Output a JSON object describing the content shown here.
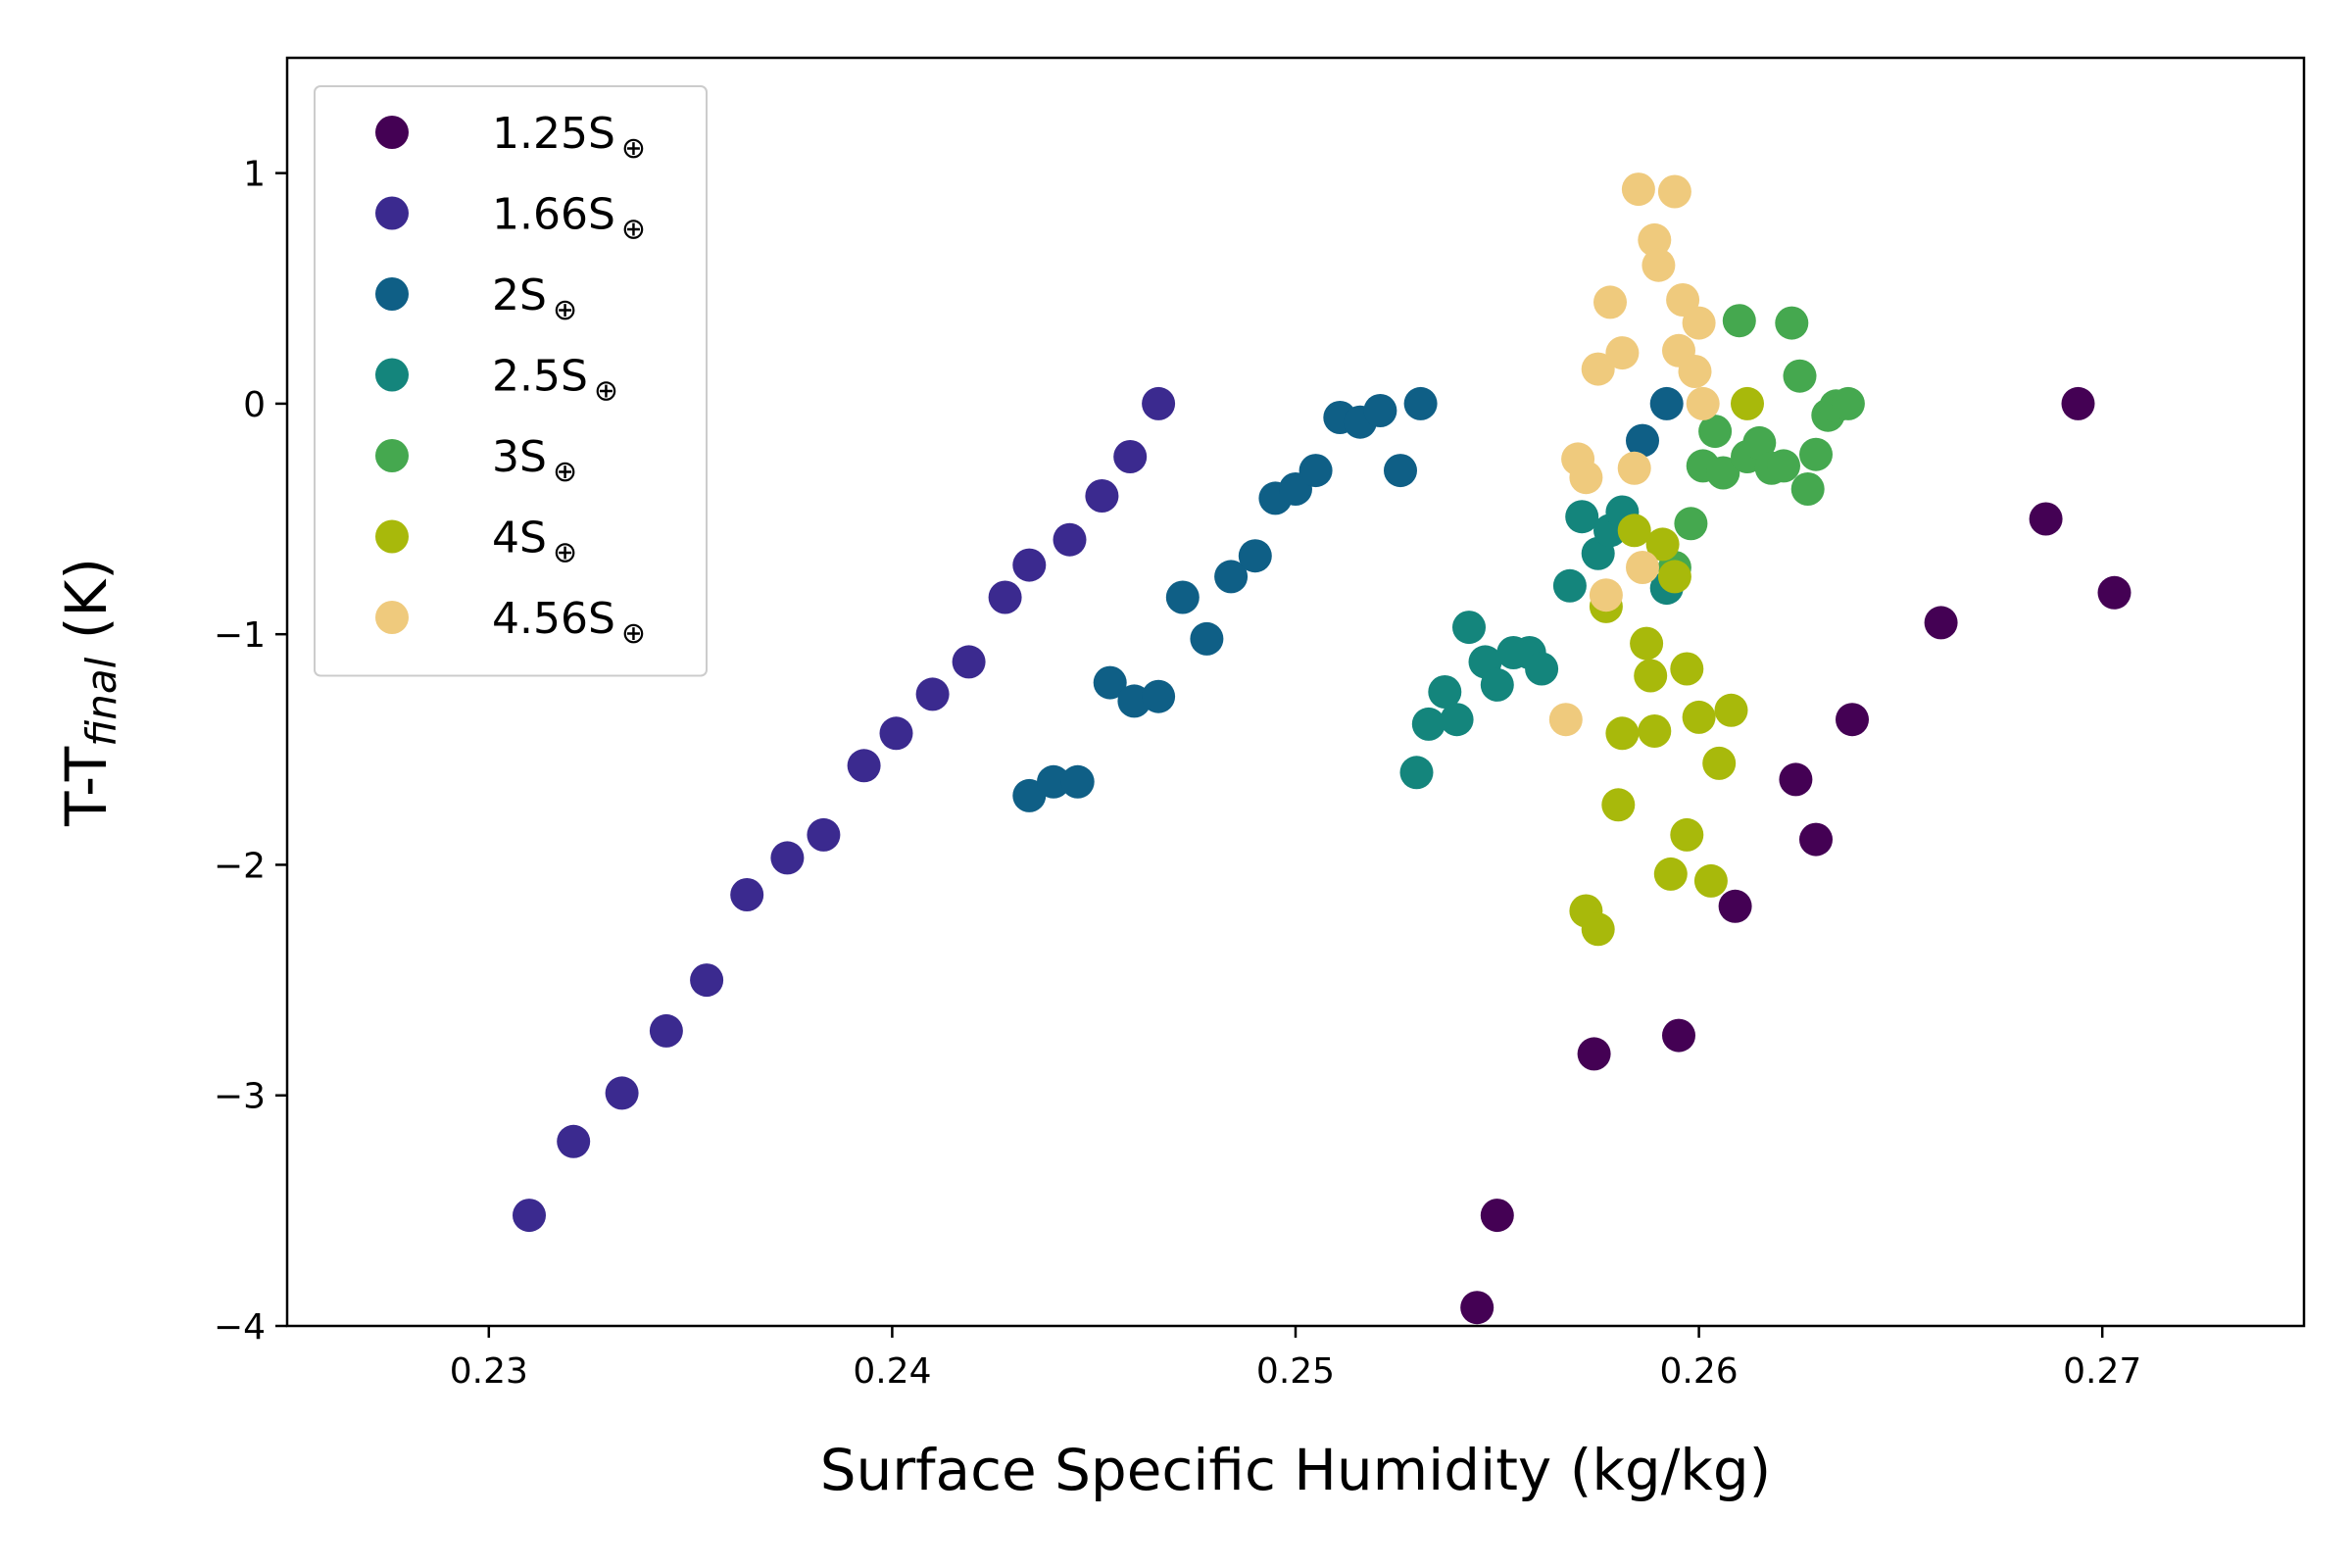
{
  "chart_data": {
    "type": "scatter",
    "title": "",
    "xlabel": "Surface Specific Humidity (kg/kg)",
    "ylabel": {
      "prefix": "T-T",
      "subscript": "final",
      "suffix": " (K)"
    },
    "xlim": [
      0.225,
      0.275
    ],
    "ylim": [
      -4,
      1.5
    ],
    "x_ticks": [
      0.23,
      0.24,
      0.25,
      0.26,
      0.27
    ],
    "x_tick_labels": [
      "0.23",
      "0.24",
      "0.25",
      "0.26",
      "0.27"
    ],
    "y_ticks": [
      1,
      0,
      -1,
      -2,
      -3,
      -4
    ],
    "y_tick_labels": [
      "1",
      "0",
      "−1",
      "−2",
      "−3",
      "−4"
    ],
    "grid": false,
    "legend_position": "top-left",
    "series": [
      {
        "name": "1.25S",
        "subscript": "⊕",
        "color": "#440154",
        "points": [
          [
            0.2545,
            -3.92
          ],
          [
            0.255,
            -3.52
          ],
          [
            0.2574,
            -2.82
          ],
          [
            0.2595,
            -2.74
          ],
          [
            0.2609,
            -2.18
          ],
          [
            0.2624,
            -1.63
          ],
          [
            0.2629,
            -1.89
          ],
          [
            0.2638,
            -1.37
          ],
          [
            0.266,
            -0.95
          ],
          [
            0.2686,
            -0.5
          ],
          [
            0.2694,
            0.0
          ],
          [
            0.2703,
            -0.82
          ]
        ]
      },
      {
        "name": "1.66S",
        "subscript": "⊕",
        "color": "#3b2a8f",
        "points": [
          [
            0.231,
            -3.52
          ],
          [
            0.2321,
            -3.2
          ],
          [
            0.2333,
            -2.99
          ],
          [
            0.2344,
            -2.72
          ],
          [
            0.2354,
            -2.5
          ],
          [
            0.2364,
            -2.13
          ],
          [
            0.2374,
            -1.97
          ],
          [
            0.2383,
            -1.87
          ],
          [
            0.2393,
            -1.57
          ],
          [
            0.2401,
            -1.43
          ],
          [
            0.241,
            -1.26
          ],
          [
            0.2419,
            -1.12
          ],
          [
            0.2428,
            -0.84
          ],
          [
            0.2434,
            -0.7
          ],
          [
            0.2444,
            -0.59
          ],
          [
            0.2452,
            -0.4
          ],
          [
            0.2459,
            -0.23
          ],
          [
            0.2466,
            0.0
          ]
        ]
      },
      {
        "name": "2S",
        "subscript": "⊕",
        "color": "#0f5f86",
        "points": [
          [
            0.2434,
            -1.7
          ],
          [
            0.244,
            -1.64
          ],
          [
            0.2446,
            -1.64
          ],
          [
            0.2454,
            -1.21
          ],
          [
            0.246,
            -1.29
          ],
          [
            0.2466,
            -1.27
          ],
          [
            0.2472,
            -0.84
          ],
          [
            0.2478,
            -1.02
          ],
          [
            0.2484,
            -0.75
          ],
          [
            0.249,
            -0.66
          ],
          [
            0.2495,
            -0.41
          ],
          [
            0.25,
            -0.37
          ],
          [
            0.2505,
            -0.29
          ],
          [
            0.2511,
            -0.06
          ],
          [
            0.2516,
            -0.08
          ],
          [
            0.2521,
            -0.03
          ],
          [
            0.2526,
            -0.29
          ],
          [
            0.2531,
            0.0
          ],
          [
            0.2586,
            -0.16
          ],
          [
            0.2592,
            0.0
          ]
        ]
      },
      {
        "name": "2.5S",
        "subscript": "⊕",
        "color": "#14857c",
        "points": [
          [
            0.253,
            -1.6
          ],
          [
            0.2533,
            -1.39
          ],
          [
            0.2537,
            -1.25
          ],
          [
            0.254,
            -1.37
          ],
          [
            0.2543,
            -0.97
          ],
          [
            0.2547,
            -1.12
          ],
          [
            0.255,
            -1.22
          ],
          [
            0.2554,
            -1.08
          ],
          [
            0.2558,
            -1.08
          ],
          [
            0.2561,
            -1.15
          ],
          [
            0.2568,
            -0.79
          ],
          [
            0.2571,
            -0.49
          ],
          [
            0.2575,
            -0.65
          ],
          [
            0.2578,
            -0.55
          ],
          [
            0.2581,
            -0.47
          ],
          [
            0.2592,
            -0.8
          ]
        ]
      },
      {
        "name": "3S",
        "subscript": "⊕",
        "color": "#45a84f",
        "points": [
          [
            0.2594,
            -0.71
          ],
          [
            0.2598,
            -0.52
          ],
          [
            0.2601,
            -0.27
          ],
          [
            0.2604,
            -0.12
          ],
          [
            0.2606,
            -0.3
          ],
          [
            0.261,
            0.36
          ],
          [
            0.2612,
            -0.23
          ],
          [
            0.2615,
            -0.17
          ],
          [
            0.2618,
            -0.28
          ],
          [
            0.2621,
            -0.27
          ],
          [
            0.2623,
            0.35
          ],
          [
            0.2625,
            0.12
          ],
          [
            0.2627,
            -0.37
          ],
          [
            0.2629,
            -0.22
          ],
          [
            0.2632,
            -0.05
          ],
          [
            0.2634,
            -0.01
          ],
          [
            0.2637,
            0.0
          ]
        ]
      },
      {
        "name": "4S",
        "subscript": "⊕",
        "color": "#a8b90b",
        "points": [
          [
            0.2572,
            -2.2
          ],
          [
            0.2575,
            -2.28
          ],
          [
            0.2577,
            -0.88
          ],
          [
            0.258,
            -1.74
          ],
          [
            0.2581,
            -1.43
          ],
          [
            0.2584,
            -0.55
          ],
          [
            0.2587,
            -1.04
          ],
          [
            0.2588,
            -1.18
          ],
          [
            0.2589,
            -1.42
          ],
          [
            0.2591,
            -0.61
          ],
          [
            0.2593,
            -2.04
          ],
          [
            0.2594,
            -0.75
          ],
          [
            0.2597,
            -1.15
          ],
          [
            0.2597,
            -1.87
          ],
          [
            0.26,
            -1.36
          ],
          [
            0.2603,
            -2.07
          ],
          [
            0.2605,
            -1.56
          ],
          [
            0.2608,
            -1.33
          ],
          [
            0.2612,
            0.0
          ]
        ]
      },
      {
        "name": "4.56S",
        "subscript": "⊕",
        "color": "#efca7d",
        "points": [
          [
            0.2567,
            -1.37
          ],
          [
            0.257,
            -0.24
          ],
          [
            0.2572,
            -0.32
          ],
          [
            0.2575,
            0.15
          ],
          [
            0.2577,
            -0.83
          ],
          [
            0.2578,
            0.44
          ],
          [
            0.2581,
            0.22
          ],
          [
            0.2584,
            -0.28
          ],
          [
            0.2585,
            0.93
          ],
          [
            0.2586,
            -0.71
          ],
          [
            0.2589,
            0.71
          ],
          [
            0.259,
            0.6
          ],
          [
            0.2594,
            0.92
          ],
          [
            0.2595,
            0.23
          ],
          [
            0.2596,
            0.45
          ],
          [
            0.2599,
            0.14
          ],
          [
            0.26,
            0.35
          ],
          [
            0.2601,
            0.0
          ]
        ]
      }
    ]
  }
}
